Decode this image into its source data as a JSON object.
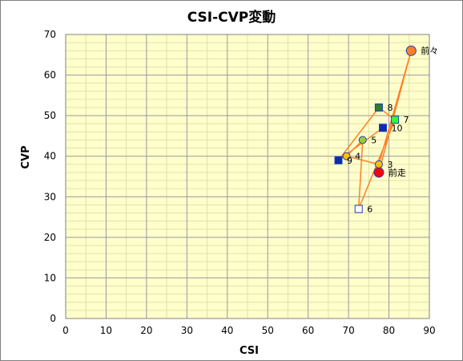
{
  "chart_data": {
    "type": "scatter",
    "title": "CSI-CVP変動",
    "xlabel": "CSI",
    "ylabel": "CVP",
    "xlim": [
      0,
      90
    ],
    "ylim": [
      0,
      70
    ],
    "xticks": [
      0,
      10,
      20,
      30,
      40,
      50,
      60,
      70,
      80,
      90
    ],
    "yticks": [
      0,
      10,
      20,
      30,
      40,
      50,
      60,
      70
    ],
    "grid": true,
    "colors": {
      "plot_bg": "#ffffcc",
      "grid_major": "#999999",
      "grid_minor": "#e0e0a8",
      "line": "#ff7f27",
      "point_orange": "#ff7f27",
      "point_yellow": "#ffc000",
      "point_green": "#99cc33",
      "point_red": "#ff0000",
      "square_dark_green": "#2e7d32",
      "square_green": "#33ff33",
      "square_blue": "#0d2ca8",
      "square_white": "#ffffff",
      "outline_blue": "#1f3fbf"
    },
    "points": [
      {
        "label": "前々",
        "x": 85.5,
        "y": 66,
        "marker": "circle",
        "fill": "#ff7f27",
        "size": 6
      },
      {
        "label": "前走",
        "x": 77.5,
        "y": 36,
        "marker": "circle",
        "fill": "#ff0000",
        "size": 6
      },
      {
        "label": "3",
        "x": 77.5,
        "y": 38,
        "marker": "circle",
        "fill": "#ffc000",
        "size": 4.5
      },
      {
        "label": "4",
        "x": 69.5,
        "y": 40,
        "marker": "circle",
        "fill": "#ffc000",
        "size": 4.5
      },
      {
        "label": "5",
        "x": 73.5,
        "y": 44,
        "marker": "circle",
        "fill": "#99cc33",
        "size": 4.5
      },
      {
        "label": "6",
        "x": 72.5,
        "y": 27,
        "marker": "square",
        "fill": "#ffffff",
        "size": 4.5
      },
      {
        "label": "7",
        "x": 81.5,
        "y": 49,
        "marker": "square",
        "fill": "#33ff33",
        "size": 4.5
      },
      {
        "label": "8",
        "x": 77.5,
        "y": 52,
        "marker": "square",
        "fill": "#2e7d32",
        "size": 4.5
      },
      {
        "label": "9",
        "x": 67.5,
        "y": 39,
        "marker": "square",
        "fill": "#0d2ca8",
        "size": 4.5
      },
      {
        "label": "10",
        "x": 78.5,
        "y": 47,
        "marker": "square",
        "fill": "#0d2ca8",
        "size": 4.5
      }
    ],
    "path_order": [
      "前走",
      "前々",
      "3",
      "4",
      "5",
      "6",
      "7",
      "8",
      "9",
      "10"
    ]
  }
}
